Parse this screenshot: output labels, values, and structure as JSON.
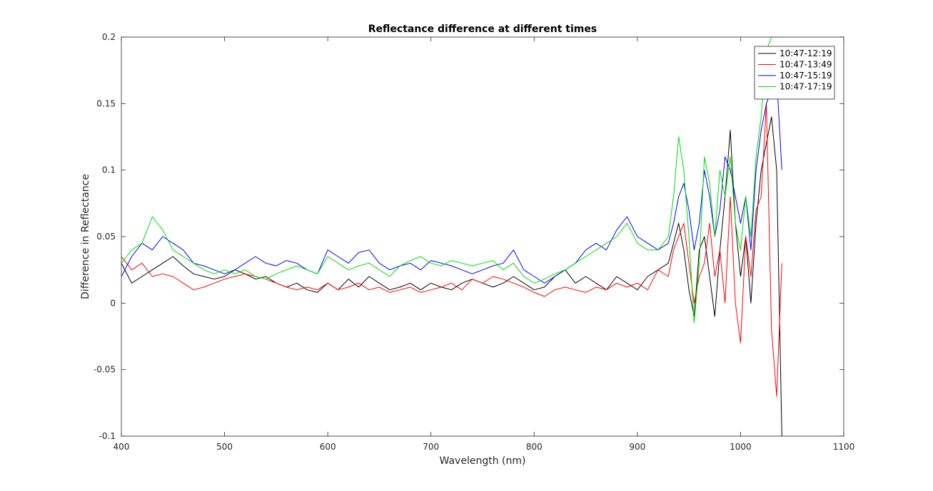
{
  "chart_data": {
    "type": "line",
    "title": "Reflectance difference at different times",
    "xlabel": "Wavelength (nm)",
    "ylabel": "Difference in Reflectance",
    "xlim": [
      400,
      1100
    ],
    "ylim": [
      -0.1,
      0.2
    ],
    "xticks": [
      400,
      500,
      600,
      700,
      800,
      900,
      1000,
      1100
    ],
    "xtick_labels": [
      "400",
      "500",
      "600",
      "700",
      "800",
      "900",
      "1000",
      "1100"
    ],
    "yticks": [
      -0.1,
      -0.05,
      0,
      0.05,
      0.1,
      0.15,
      0.2
    ],
    "ytick_labels": [
      "-0.1",
      "-0.05",
      "0",
      "0.05",
      "0.1",
      "0.15",
      "0.2"
    ],
    "grid": false,
    "legend_position": "top-right",
    "series": [
      {
        "name": "10:47-12:19",
        "color": "#000000",
        "x": [
          400,
          410,
          420,
          430,
          440,
          450,
          460,
          470,
          480,
          490,
          500,
          510,
          520,
          530,
          540,
          550,
          560,
          570,
          580,
          590,
          600,
          610,
          620,
          630,
          640,
          650,
          660,
          670,
          680,
          690,
          700,
          710,
          720,
          730,
          740,
          750,
          760,
          770,
          780,
          790,
          800,
          810,
          820,
          830,
          840,
          850,
          860,
          870,
          880,
          890,
          900,
          910,
          920,
          930,
          935,
          940,
          945,
          950,
          955,
          960,
          965,
          970,
          975,
          980,
          985,
          990,
          995,
          1000,
          1005,
          1010,
          1015,
          1020,
          1025,
          1030,
          1035,
          1040
        ],
        "y": [
          0.03,
          0.015,
          0.02,
          0.025,
          0.03,
          0.035,
          0.028,
          0.022,
          0.02,
          0.018,
          0.02,
          0.025,
          0.022,
          0.018,
          0.02,
          0.015,
          0.012,
          0.015,
          0.01,
          0.008,
          0.015,
          0.01,
          0.018,
          0.012,
          0.02,
          0.015,
          0.01,
          0.012,
          0.015,
          0.01,
          0.015,
          0.012,
          0.01,
          0.015,
          0.018,
          0.015,
          0.012,
          0.015,
          0.02,
          0.015,
          0.01,
          0.012,
          0.02,
          0.025,
          0.015,
          0.02,
          0.015,
          0.01,
          0.02,
          0.015,
          0.01,
          0.02,
          0.025,
          0.03,
          0.045,
          0.06,
          0.04,
          0.01,
          -0.01,
          0.04,
          0.05,
          0.02,
          -0.01,
          0.04,
          0.08,
          0.13,
          0.06,
          0.02,
          0.05,
          0.0,
          0.06,
          0.1,
          0.12,
          0.14,
          0.1,
          -0.1
        ]
      },
      {
        "name": "10:47-13:49",
        "color": "#ff0000",
        "x": [
          400,
          410,
          420,
          430,
          440,
          450,
          460,
          470,
          480,
          490,
          500,
          510,
          520,
          530,
          540,
          550,
          560,
          570,
          580,
          590,
          600,
          610,
          620,
          630,
          640,
          650,
          660,
          670,
          680,
          690,
          700,
          710,
          720,
          730,
          740,
          750,
          760,
          770,
          780,
          790,
          800,
          810,
          820,
          830,
          840,
          850,
          860,
          870,
          880,
          890,
          900,
          910,
          920,
          930,
          935,
          940,
          945,
          950,
          955,
          960,
          965,
          970,
          975,
          980,
          985,
          990,
          995,
          1000,
          1005,
          1010,
          1015,
          1020,
          1025,
          1030,
          1035,
          1040
        ],
        "y": [
          0.035,
          0.025,
          0.03,
          0.02,
          0.022,
          0.02,
          0.015,
          0.01,
          0.012,
          0.015,
          0.018,
          0.02,
          0.022,
          0.02,
          0.018,
          0.015,
          0.012,
          0.01,
          0.012,
          0.01,
          0.015,
          0.01,
          0.012,
          0.015,
          0.01,
          0.012,
          0.008,
          0.01,
          0.012,
          0.008,
          0.01,
          0.012,
          0.015,
          0.01,
          0.018,
          0.015,
          0.02,
          0.018,
          0.015,
          0.012,
          0.008,
          0.005,
          0.01,
          0.012,
          0.01,
          0.008,
          0.012,
          0.01,
          0.015,
          0.012,
          0.015,
          0.01,
          0.025,
          0.02,
          0.04,
          0.05,
          0.06,
          0.03,
          0.0,
          0.02,
          0.03,
          0.06,
          0.02,
          0.04,
          0.0,
          0.08,
          0.0,
          -0.03,
          0.05,
          0.02,
          0.07,
          0.08,
          0.15,
          -0.02,
          -0.07,
          0.03
        ]
      },
      {
        "name": "10:47-15:19",
        "color": "#0000ff",
        "x": [
          400,
          410,
          420,
          430,
          440,
          450,
          460,
          470,
          480,
          490,
          500,
          510,
          520,
          530,
          540,
          550,
          560,
          570,
          580,
          590,
          600,
          610,
          620,
          630,
          640,
          650,
          660,
          670,
          680,
          690,
          700,
          710,
          720,
          730,
          740,
          750,
          760,
          770,
          780,
          790,
          800,
          810,
          820,
          830,
          840,
          850,
          860,
          870,
          880,
          890,
          900,
          910,
          920,
          930,
          935,
          940,
          945,
          950,
          955,
          960,
          965,
          970,
          975,
          980,
          985,
          990,
          995,
          1000,
          1005,
          1010,
          1015,
          1020,
          1025,
          1030,
          1035,
          1040
        ],
        "y": [
          0.02,
          0.035,
          0.045,
          0.04,
          0.05,
          0.045,
          0.04,
          0.03,
          0.028,
          0.025,
          0.022,
          0.025,
          0.03,
          0.035,
          0.03,
          0.028,
          0.032,
          0.03,
          0.025,
          0.022,
          0.04,
          0.035,
          0.03,
          0.038,
          0.04,
          0.03,
          0.025,
          0.028,
          0.03,
          0.025,
          0.032,
          0.03,
          0.028,
          0.025,
          0.022,
          0.025,
          0.028,
          0.03,
          0.04,
          0.025,
          0.02,
          0.015,
          0.02,
          0.025,
          0.03,
          0.04,
          0.045,
          0.04,
          0.055,
          0.065,
          0.05,
          0.045,
          0.04,
          0.045,
          0.06,
          0.08,
          0.09,
          0.07,
          0.04,
          0.06,
          0.1,
          0.08,
          0.05,
          0.07,
          0.11,
          0.1,
          0.08,
          0.06,
          0.08,
          0.04,
          0.1,
          0.13,
          0.15,
          0.16,
          0.17,
          0.1
        ]
      },
      {
        "name": "10:47-17:19",
        "color": "#00dd00",
        "x": [
          400,
          410,
          420,
          430,
          440,
          450,
          460,
          470,
          480,
          490,
          500,
          510,
          520,
          530,
          540,
          550,
          560,
          570,
          580,
          590,
          600,
          610,
          620,
          630,
          640,
          650,
          660,
          670,
          680,
          690,
          700,
          710,
          720,
          730,
          740,
          750,
          760,
          770,
          780,
          790,
          800,
          810,
          820,
          830,
          840,
          850,
          860,
          870,
          880,
          890,
          900,
          910,
          920,
          930,
          935,
          940,
          945,
          950,
          955,
          960,
          965,
          970,
          975,
          980,
          985,
          990,
          995,
          1000,
          1005,
          1010,
          1015,
          1020,
          1025,
          1030,
          1035,
          1040
        ],
        "y": [
          0.03,
          0.04,
          0.045,
          0.065,
          0.055,
          0.04,
          0.035,
          0.03,
          0.025,
          0.022,
          0.025,
          0.022,
          0.025,
          0.02,
          0.018,
          0.022,
          0.025,
          0.028,
          0.025,
          0.022,
          0.035,
          0.03,
          0.025,
          0.028,
          0.03,
          0.025,
          0.02,
          0.028,
          0.032,
          0.035,
          0.03,
          0.028,
          0.032,
          0.03,
          0.028,
          0.03,
          0.032,
          0.025,
          0.03,
          0.02,
          0.015,
          0.018,
          0.022,
          0.025,
          0.03,
          0.035,
          0.04,
          0.045,
          0.05,
          0.06,
          0.045,
          0.04,
          0.04,
          0.05,
          0.08,
          0.125,
          0.1,
          0.05,
          -0.015,
          0.03,
          0.11,
          0.09,
          0.05,
          0.1,
          0.08,
          0.11,
          0.06,
          0.04,
          0.08,
          0.05,
          0.11,
          0.14,
          0.19,
          0.2,
          0.2,
          0.2
        ]
      }
    ]
  }
}
